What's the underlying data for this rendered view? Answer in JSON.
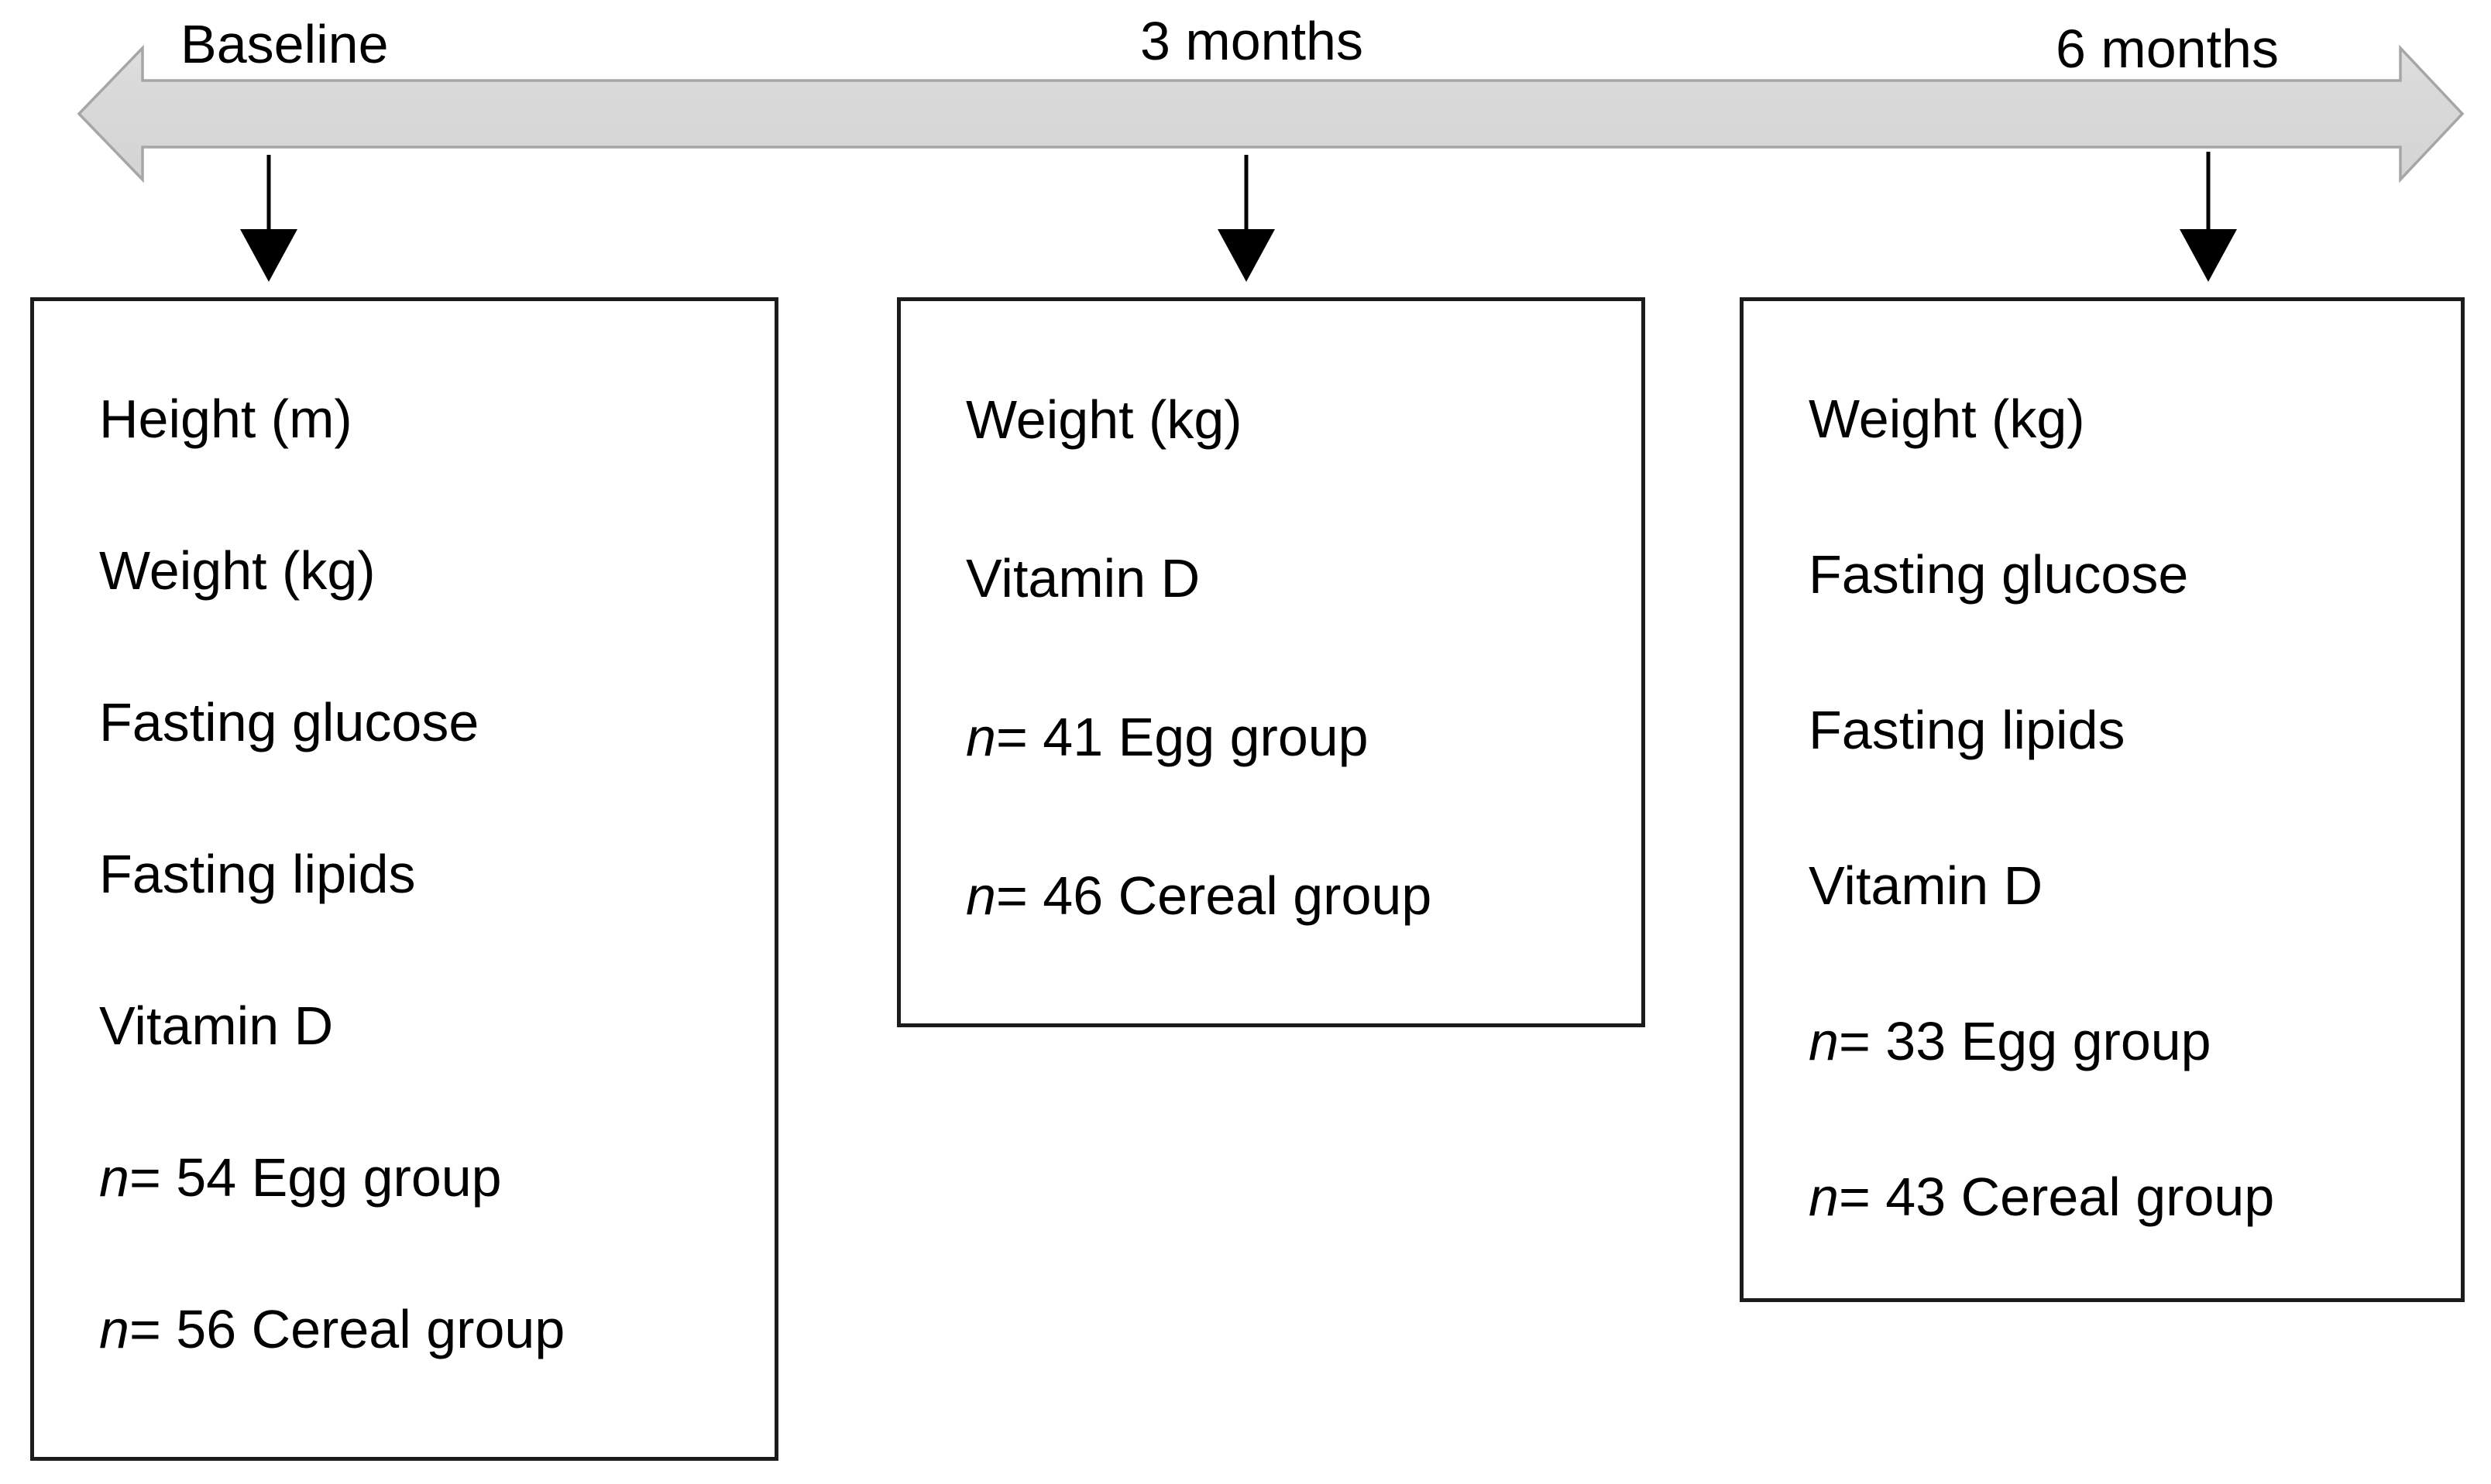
{
  "figure": {
    "kind": "study-timeline-diagram",
    "background": "#ffffff",
    "text_color": "#000000"
  },
  "timeline": {
    "shape": "double-headed-arrow",
    "fill": "#d8d8d8",
    "stroke": "#a6a6a6",
    "labels": [
      {
        "text": "Baseline"
      },
      {
        "text": "3 months"
      },
      {
        "text": "6 months"
      }
    ]
  },
  "down_arrows": {
    "color": "#000000",
    "count": 3
  },
  "boxes": [
    {
      "time_point": "Baseline",
      "lines": [
        {
          "em": "",
          "text": "Height (m)"
        },
        {
          "em": "",
          "text": "Weight (kg)"
        },
        {
          "em": "",
          "text": "Fasting glucose"
        },
        {
          "em": "",
          "text": "Fasting lipids"
        },
        {
          "em": "",
          "text": "Vitamin D"
        },
        {
          "em": "n",
          "text": " = 54 Egg group"
        },
        {
          "em": "n",
          "text": " = 56 Cereal group"
        }
      ]
    },
    {
      "time_point": "3 months",
      "lines": [
        {
          "em": "",
          "text": "Weight (kg)"
        },
        {
          "em": "",
          "text": "Vitamin D"
        },
        {
          "em": "n",
          "text": " = 41 Egg group"
        },
        {
          "em": "n",
          "text": " = 46 Cereal group"
        }
      ]
    },
    {
      "time_point": "6 months",
      "lines": [
        {
          "em": "",
          "text": "Weight (kg)"
        },
        {
          "em": "",
          "text": "Fasting glucose"
        },
        {
          "em": "",
          "text": "Fasting lipids"
        },
        {
          "em": "",
          "text": "Vitamin D"
        },
        {
          "em": "n",
          "text": " = 33 Egg group"
        },
        {
          "em": "n",
          "text": " = 43 Cereal group"
        }
      ]
    }
  ]
}
